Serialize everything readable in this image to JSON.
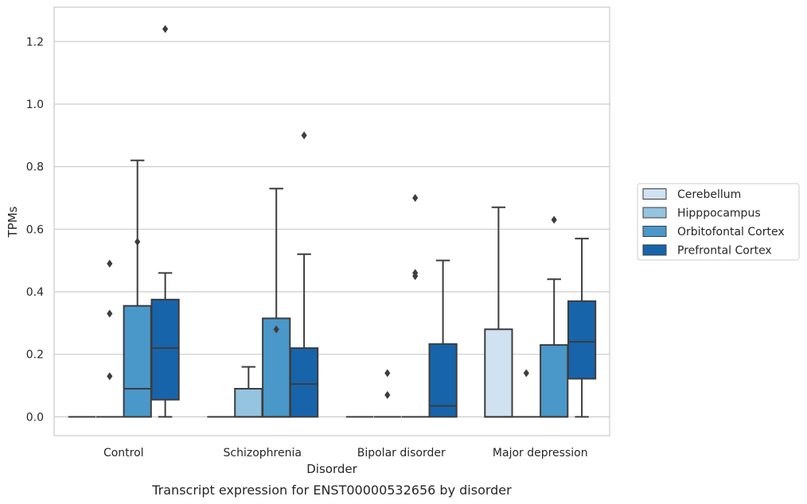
{
  "chart_data": {
    "type": "box",
    "caption": "Transcript expression for ENST00000532656 by disorder",
    "xlabel": "Disorder",
    "ylabel": "TPMs",
    "ylim": [
      -0.06,
      1.31
    ],
    "yticks": [
      0.0,
      0.2,
      0.4,
      0.6,
      0.8,
      1.0,
      1.2
    ],
    "ytick_labels": [
      "0.0",
      "0.2",
      "0.4",
      "0.6",
      "0.8",
      "1.0",
      "1.2"
    ],
    "grid": "horizontal",
    "legend_position": "right",
    "categories": [
      "Control",
      "Schizophrenia",
      "Bipolar disorder",
      "Major depression"
    ],
    "series": [
      {
        "name": "Cerebellum",
        "color": "#d0e1f2",
        "boxes": [
          {
            "whisker_low": 0,
            "q1": 0,
            "median": 0,
            "q3": 0,
            "whisker_high": 0,
            "outliers": []
          },
          {
            "whisker_low": 0,
            "q1": 0,
            "median": 0,
            "q3": 0,
            "whisker_high": 0,
            "outliers": []
          },
          {
            "whisker_low": 0,
            "q1": 0,
            "median": 0,
            "q3": 0,
            "whisker_high": 0,
            "outliers": []
          },
          {
            "whisker_low": 0,
            "q1": 0,
            "median": 0,
            "q3": 0.28,
            "whisker_high": 0.67,
            "outliers": []
          }
        ]
      },
      {
        "name": "Hipppocampus",
        "color": "#94c4df",
        "boxes": [
          {
            "whisker_low": 0,
            "q1": 0,
            "median": 0,
            "q3": 0,
            "whisker_high": 0,
            "outliers": [
              0.13,
              0.33,
              0.49
            ]
          },
          {
            "whisker_low": 0,
            "q1": 0,
            "median": 0,
            "q3": 0.09,
            "whisker_high": 0.16,
            "outliers": []
          },
          {
            "whisker_low": 0,
            "q1": 0,
            "median": 0,
            "q3": 0,
            "whisker_high": 0,
            "outliers": [
              0.07,
              0.14
            ]
          },
          {
            "whisker_low": 0,
            "q1": 0,
            "median": 0,
            "q3": 0,
            "whisker_high": 0,
            "outliers": [
              0.14
            ]
          }
        ]
      },
      {
        "name": "Orbitofontal Cortex",
        "color": "#4a98c9",
        "boxes": [
          {
            "whisker_low": 0,
            "q1": 0,
            "median": 0.09,
            "q3": 0.355,
            "whisker_high": 0.82,
            "outliers": [
              0.56
            ]
          },
          {
            "whisker_low": 0,
            "q1": 0,
            "median": 0,
            "q3": 0.315,
            "whisker_high": 0.73,
            "outliers": [
              0.28
            ]
          },
          {
            "whisker_low": 0,
            "q1": 0,
            "median": 0,
            "q3": 0,
            "whisker_high": 0,
            "outliers": [
              0.45,
              0.46,
              0.7
            ]
          },
          {
            "whisker_low": 0,
            "q1": 0,
            "median": 0,
            "q3": 0.23,
            "whisker_high": 0.44,
            "outliers": [
              0.63
            ]
          }
        ]
      },
      {
        "name": "Prefrontal Cortex",
        "color": "#1764ab",
        "boxes": [
          {
            "whisker_low": 0,
            "q1": 0.055,
            "median": 0.22,
            "q3": 0.375,
            "whisker_high": 0.46,
            "outliers": [
              1.24
            ]
          },
          {
            "whisker_low": 0,
            "q1": 0,
            "median": 0.105,
            "q3": 0.22,
            "whisker_high": 0.52,
            "outliers": [
              0.9
            ]
          },
          {
            "whisker_low": 0,
            "q1": 0,
            "median": 0.035,
            "q3": 0.233,
            "whisker_high": 0.5,
            "outliers": []
          },
          {
            "whisker_low": 0,
            "q1": 0.122,
            "median": 0.24,
            "q3": 0.37,
            "whisker_high": 0.57,
            "outliers": []
          }
        ]
      }
    ]
  }
}
